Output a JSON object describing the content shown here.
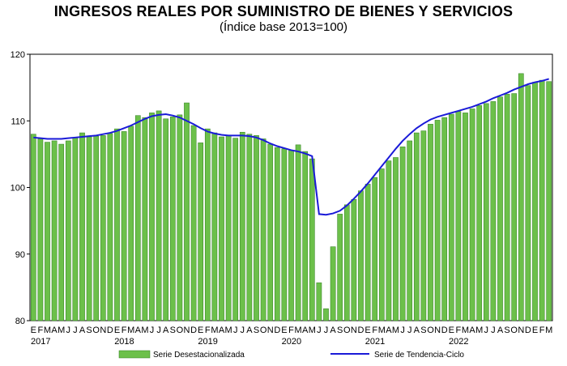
{
  "chart_data": {
    "type": "bar",
    "title": "INGRESOS REALES POR SUMINISTRO DE BIENES Y SERVICIOS",
    "subtitle": "(Índice base 2013=100)",
    "ylim": [
      80,
      120
    ],
    "y_ticks": [
      80,
      90,
      100,
      110,
      120
    ],
    "month_letters": [
      "E",
      "F",
      "M",
      "A",
      "M",
      "J",
      "J",
      "A",
      "S",
      "O",
      "N",
      "D"
    ],
    "years": [
      "2017",
      "2018",
      "2019",
      "2020",
      "2021",
      "2022"
    ],
    "colors": {
      "bar": "#6cc04a",
      "bar_edge": "#2e7d1e",
      "trend": "#1a1ad8"
    },
    "series": [
      {
        "name": "Serie Desestacionalizada",
        "type": "bar",
        "values": [
          108.0,
          107.3,
          106.8,
          107.0,
          106.5,
          107.0,
          107.5,
          108.2,
          107.6,
          107.7,
          107.8,
          108.1,
          108.8,
          108.4,
          109.2,
          110.8,
          110.5,
          111.2,
          111.5,
          110.3,
          110.6,
          110.9,
          112.7,
          109.3,
          106.7,
          108.8,
          108.2,
          107.6,
          107.8,
          107.4,
          108.3,
          108.0,
          107.8,
          107.3,
          106.5,
          106.0,
          105.8,
          105.6,
          106.4,
          105.4,
          104.3,
          85.7,
          81.8,
          91.1,
          96.0,
          97.4,
          98.2,
          99.5,
          100.5,
          101.5,
          102.8,
          104.0,
          104.5,
          106.1,
          107.0,
          108.2,
          108.5,
          109.5,
          110.1,
          110.5,
          111.0,
          111.4,
          111.2,
          111.8,
          112.3,
          112.6,
          112.9,
          113.6,
          114.0,
          114.1,
          117.1,
          115.3,
          115.8,
          116.1,
          115.9
        ]
      },
      {
        "name": "Serie de Tendencia-Ciclo",
        "type": "line",
        "values": [
          107.5,
          107.4,
          107.3,
          107.3,
          107.3,
          107.4,
          107.5,
          107.6,
          107.7,
          107.8,
          108.0,
          108.2,
          108.5,
          108.9,
          109.3,
          109.8,
          110.3,
          110.7,
          110.9,
          111.0,
          110.8,
          110.5,
          110.0,
          109.5,
          108.9,
          108.4,
          108.1,
          107.9,
          107.8,
          107.8,
          107.8,
          107.7,
          107.5,
          107.1,
          106.6,
          106.2,
          105.9,
          105.6,
          105.4,
          105.1,
          104.7,
          96.0,
          95.9,
          96.1,
          96.5,
          97.3,
          98.3,
          99.4,
          100.6,
          101.9,
          103.2,
          104.5,
          105.8,
          107.0,
          108.0,
          108.9,
          109.6,
          110.2,
          110.6,
          110.9,
          111.2,
          111.5,
          111.8,
          112.1,
          112.5,
          112.9,
          113.4,
          113.8,
          114.2,
          114.7,
          115.1,
          115.5,
          115.8,
          116.0,
          116.3
        ]
      }
    ],
    "legend": {
      "placement": "bottom"
    }
  }
}
